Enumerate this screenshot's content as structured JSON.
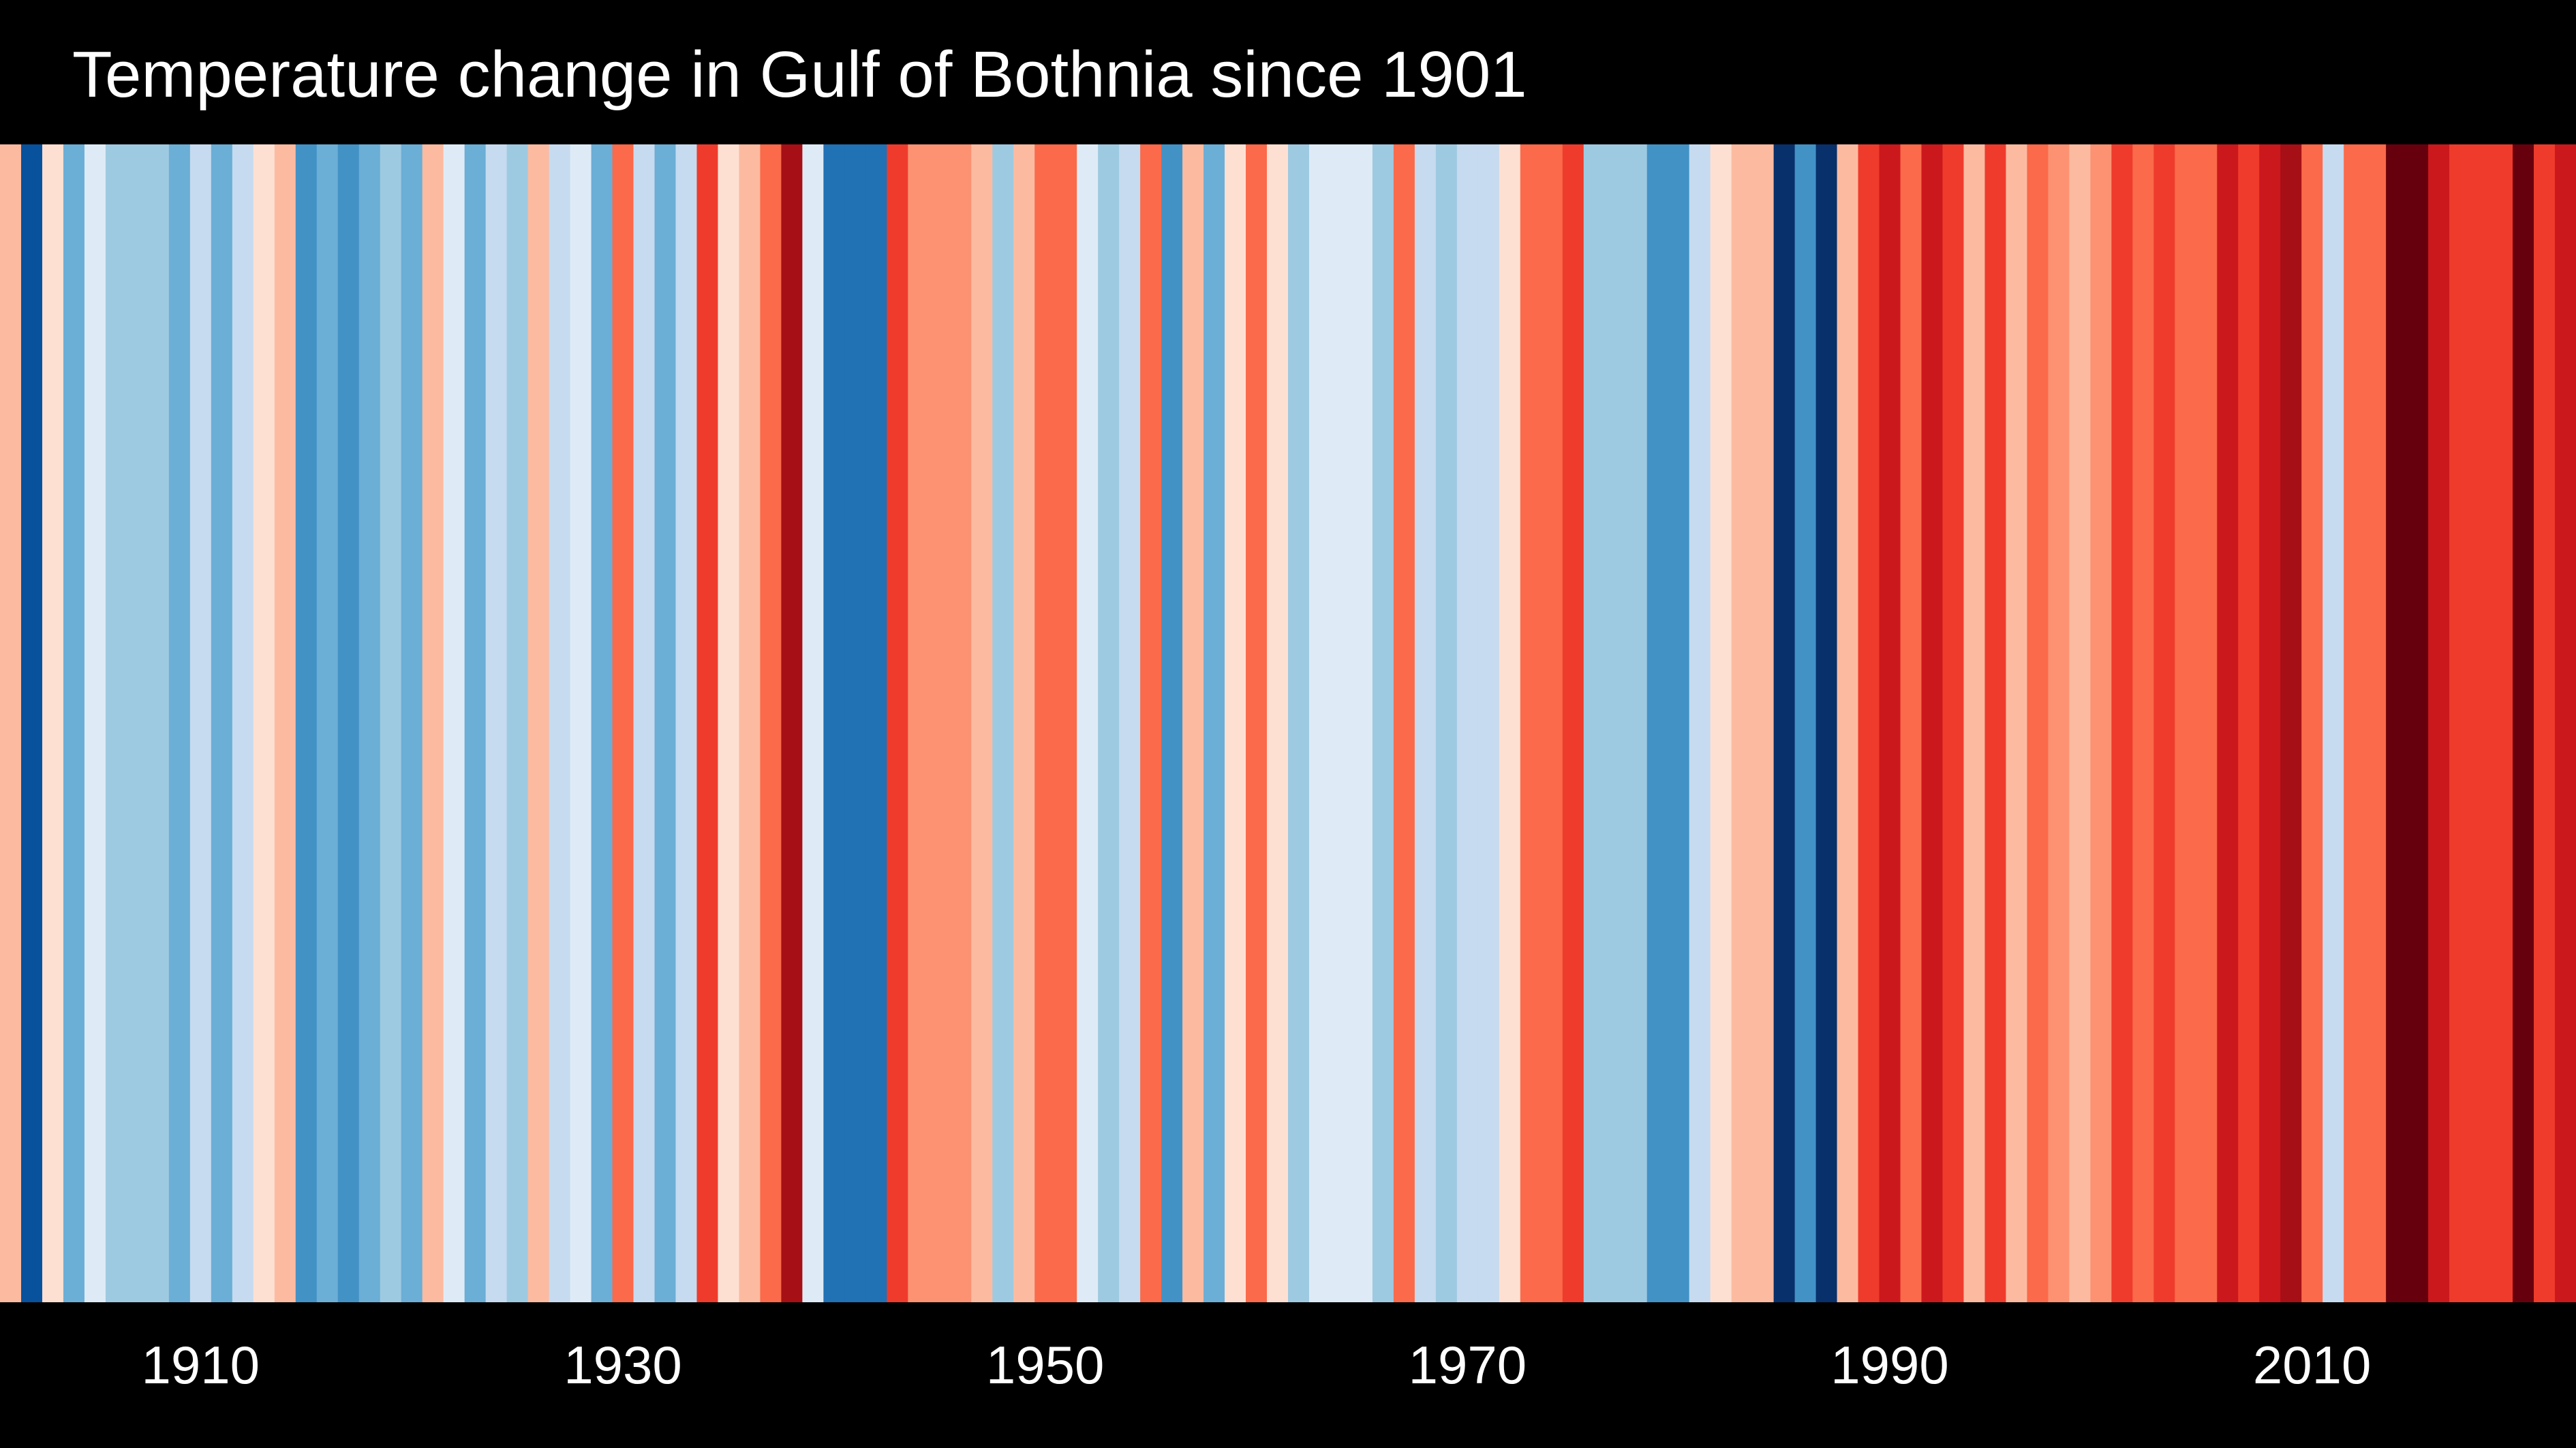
{
  "chart_data": {
    "type": "heatmap",
    "title": "Temperature change in Gulf of Bothnia since 1901",
    "x_start": 1901,
    "x_end": 2022,
    "x_ticks": [
      "1910",
      "1930",
      "1950",
      "1970",
      "1990",
      "2010"
    ],
    "tick_values": [
      1910,
      1930,
      1950,
      1970,
      1990,
      2010
    ],
    "grid": false,
    "legend": "none",
    "colors": {
      "background": "#000000",
      "text": "#ffffff"
    },
    "stripe_colors": [
      "#fcbba1",
      "#08519c",
      "#fee0d2",
      "#6baed6",
      "#deebf7",
      "#9ecae1",
      "#9ecae1",
      "#9ecae1",
      "#6baed6",
      "#c6dbef",
      "#6baed6",
      "#c6dbef",
      "#fee0d2",
      "#fcbba1",
      "#4292c6",
      "#6baed6",
      "#4292c6",
      "#6baed6",
      "#9ecae1",
      "#6baed6",
      "#fcbba1",
      "#deebf7",
      "#6baed6",
      "#c6dbef",
      "#9ecae1",
      "#fcbba1",
      "#c6dbef",
      "#deebf7",
      "#6baed6",
      "#fb6a4a",
      "#c6dbef",
      "#6baed6",
      "#c6dbef",
      "#ef3b2c",
      "#fee0d2",
      "#fcbba1",
      "#fb6a4a",
      "#a50f15",
      "#deebf7",
      "#2171b5",
      "#2171b5",
      "#2171b5",
      "#ef3b2c",
      "#fc9272",
      "#fc9272",
      "#fc9272",
      "#fcbba1",
      "#9ecae1",
      "#fcbba1",
      "#fb6a4a",
      "#fb6a4a",
      "#deebf7",
      "#9ecae1",
      "#c6dbef",
      "#fb6a4a",
      "#4292c6",
      "#fcbba1",
      "#6baed6",
      "#fee0d2",
      "#fb6a4a",
      "#fee0d2",
      "#9ecae1",
      "#deebf7",
      "#deebf7",
      "#deebf7",
      "#9ecae1",
      "#fb6a4a",
      "#c6dbef",
      "#9ecae1",
      "#c6dbef",
      "#c6dbef",
      "#fee0d2",
      "#fb6a4a",
      "#fb6a4a",
      "#ef3b2c",
      "#9ecae1",
      "#9ecae1",
      "#9ecae1",
      "#4292c6",
      "#4292c6",
      "#c6dbef",
      "#fee0d2",
      "#fcbba1",
      "#fcbba1",
      "#08306b",
      "#4292c6",
      "#08306b",
      "#fcbba1",
      "#ef3b2c",
      "#cb181d",
      "#fb6a4a",
      "#cb181d",
      "#ef3b2c",
      "#fcbba1",
      "#ef3b2c",
      "#fcbba1",
      "#fb6a4a",
      "#fc9272",
      "#fcbba1",
      "#fc9272",
      "#ef3b2c",
      "#fb6a4a",
      "#ef3b2c",
      "#fb6a4a",
      "#fb6a4a",
      "#cb181d",
      "#ef3b2c",
      "#cb181d",
      "#a50f15",
      "#fb6a4a",
      "#c6dbef",
      "#fb6a4a",
      "#fb6a4a",
      "#67000d",
      "#67000d",
      "#cb181d",
      "#ef3b2c",
      "#ef3b2c",
      "#ef3b2c",
      "#67000d",
      "#ef3b2c",
      "#cb181d"
    ]
  }
}
